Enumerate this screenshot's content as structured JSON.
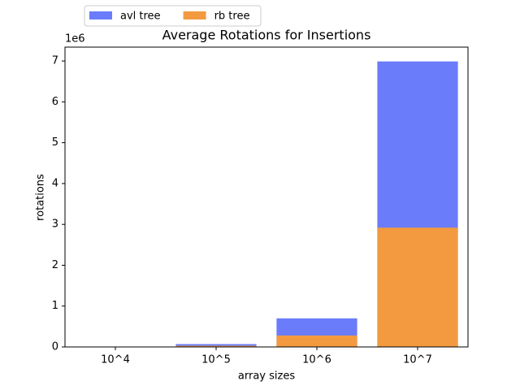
{
  "chart_data": {
    "type": "bar",
    "title": "Average Rotations for Insertions",
    "x_label": "array sizes",
    "y_label": "rotations",
    "y_offset_label": "1e6",
    "categories": [
      "10^4",
      "10^5",
      "10^6",
      "10^7"
    ],
    "series": [
      {
        "name": "avl tree",
        "color": "#6a7cfa",
        "values": [
          7000,
          70000,
          700000,
          6990000
        ]
      },
      {
        "name": "rb tree",
        "color": "#f39a40",
        "values": [
          2800,
          28000,
          280000,
          2920000
        ]
      }
    ],
    "ylim": [
      0,
      7340000
    ],
    "yticks": [
      {
        "value": 0,
        "label": "0"
      },
      {
        "value": 1000000,
        "label": "1"
      },
      {
        "value": 2000000,
        "label": "2"
      },
      {
        "value": 3000000,
        "label": "3"
      },
      {
        "value": 4000000,
        "label": "4"
      },
      {
        "value": 5000000,
        "label": "5"
      },
      {
        "value": 6000000,
        "label": "6"
      },
      {
        "value": 7000000,
        "label": "7"
      }
    ],
    "legend": "upper left"
  }
}
